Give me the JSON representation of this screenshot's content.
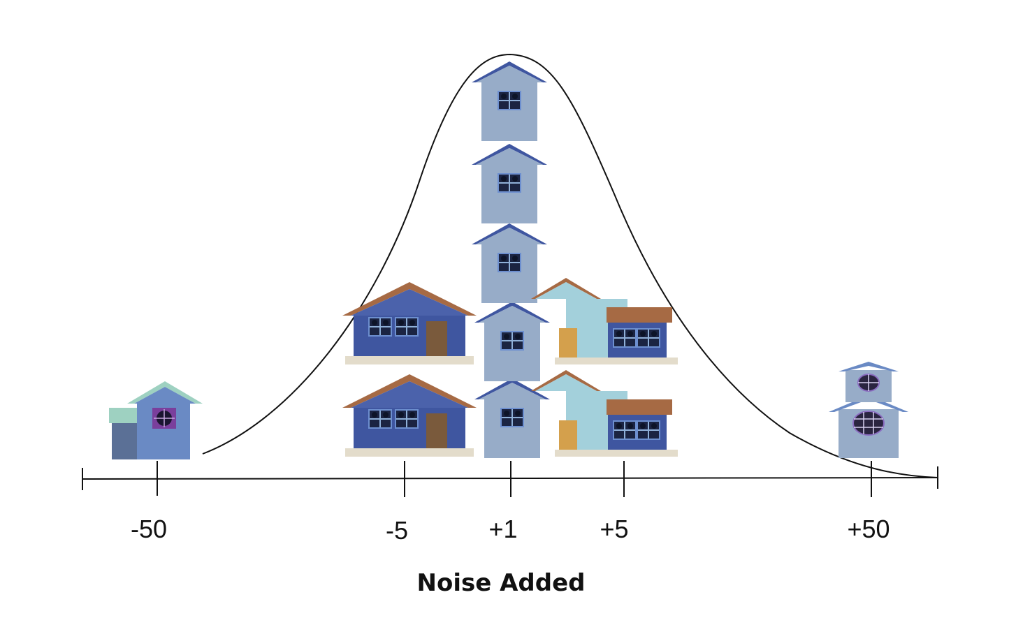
{
  "axis": {
    "title": "Noise Added",
    "ticks": [
      {
        "label": "-50"
      },
      {
        "label": "-5"
      },
      {
        "label": "+1"
      },
      {
        "label": "+5"
      },
      {
        "label": "+50"
      }
    ]
  },
  "curve": {
    "shape": "bell-curve",
    "color": "#111111"
  },
  "houses": [
    {
      "name": "house-minus-50",
      "style": "cottage-with-shed",
      "at_tick": "-50"
    },
    {
      "name": "house-minus-5-bottom",
      "style": "wide-blue-ranch",
      "at_tick": "-5"
    },
    {
      "name": "house-minus-5-top",
      "style": "wide-blue-ranch",
      "at_tick": "-5"
    },
    {
      "name": "house-plus-1-stack-1",
      "style": "tall-narrow-gable",
      "at_tick": "+1"
    },
    {
      "name": "house-plus-1-stack-2",
      "style": "tall-narrow-gable",
      "at_tick": "+1"
    },
    {
      "name": "house-plus-1-stack-3",
      "style": "tall-narrow-gable",
      "at_tick": "+1"
    },
    {
      "name": "house-plus-1-stack-4",
      "style": "tall-narrow-gable",
      "at_tick": "+1"
    },
    {
      "name": "house-plus-1-stack-5",
      "style": "tall-narrow-gable",
      "at_tick": "+1"
    },
    {
      "name": "house-plus-5-bottom",
      "style": "teal-with-garage",
      "at_tick": "+5"
    },
    {
      "name": "house-plus-5-top",
      "style": "teal-with-garage",
      "at_tick": "+5"
    },
    {
      "name": "house-plus-50",
      "style": "two-story-round-windows",
      "at_tick": "+50"
    }
  ],
  "colors": {
    "navy": "#3f56a0",
    "slate_blue": "#6a8ac4",
    "pale_blue": "#97acc8",
    "light_teal": "#a3d0db",
    "mint": "#9ed1c1",
    "brown_roof": "#a66a44",
    "door_brown": "#7a5a3c",
    "door_gold": "#d4a04c",
    "porch": "#e3dccb"
  }
}
